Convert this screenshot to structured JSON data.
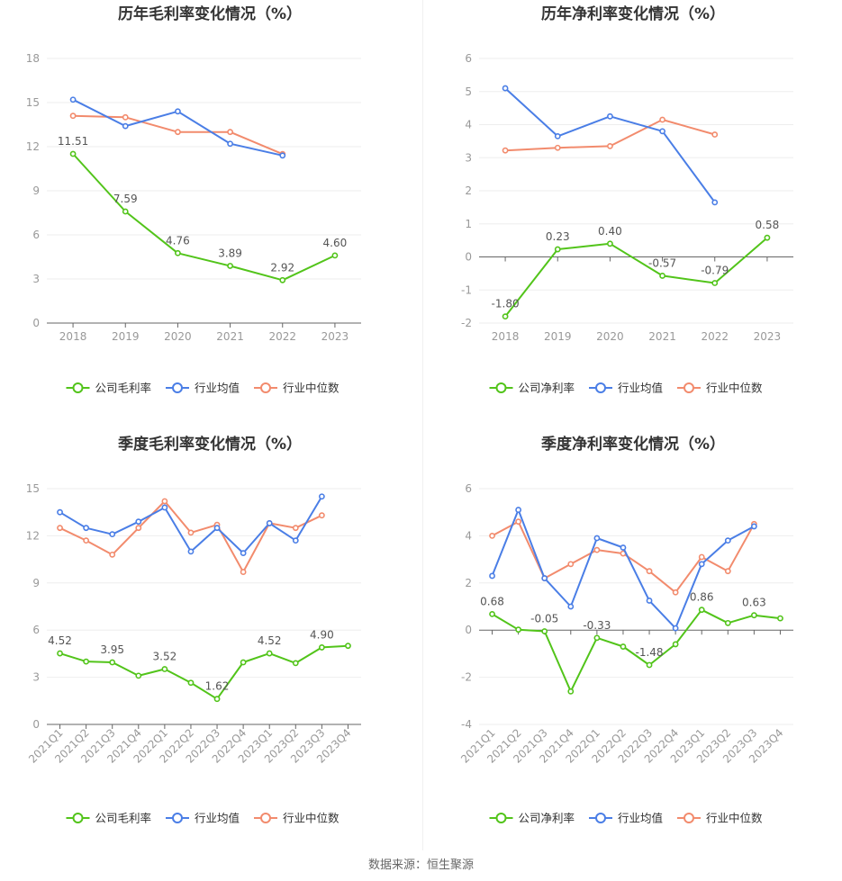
{
  "colors": {
    "company": "#52c41a",
    "industry_avg": "#4a7ee6",
    "industry_median": "#f28b6d",
    "grid": "#eeeeee",
    "axis": "#666666",
    "tick_text": "#999999"
  },
  "footer": {
    "source": "数据来源：恒生聚源"
  },
  "chart_data": [
    {
      "id": "annual-gross",
      "type": "line",
      "title": "历年毛利率变化情况（%）",
      "categories": [
        "2018",
        "2019",
        "2020",
        "2021",
        "2022",
        "2023"
      ],
      "ylim": [
        0,
        18
      ],
      "yticks": [
        0,
        3,
        6,
        9,
        12,
        15,
        18
      ],
      "grid": true,
      "legend_position": "bottom",
      "series": [
        {
          "name": "公司毛利率",
          "color": "#52c41a",
          "values": [
            11.51,
            7.59,
            4.76,
            3.89,
            2.92,
            4.6
          ],
          "labels": [
            "11.51",
            "7.59",
            "4.76",
            "3.89",
            "2.92",
            "4.60"
          ]
        },
        {
          "name": "行业均值",
          "color": "#4a7ee6",
          "values": [
            15.2,
            13.4,
            14.4,
            12.2,
            11.4,
            null
          ]
        },
        {
          "name": "行业中位数",
          "color": "#f28b6d",
          "values": [
            14.1,
            14.0,
            13.0,
            13.0,
            11.5,
            null
          ]
        }
      ]
    },
    {
      "id": "annual-net",
      "type": "line",
      "title": "历年净利率变化情况（%）",
      "categories": [
        "2018",
        "2019",
        "2020",
        "2021",
        "2022",
        "2023"
      ],
      "ylim": [
        -2,
        6
      ],
      "yticks": [
        -2,
        -1,
        0,
        1,
        2,
        3,
        4,
        5,
        6
      ],
      "grid": true,
      "legend_position": "bottom",
      "series": [
        {
          "name": "公司净利率",
          "color": "#52c41a",
          "values": [
            -1.8,
            0.23,
            0.4,
            -0.57,
            -0.79,
            0.58
          ],
          "labels": [
            "-1.80",
            "0.23",
            "0.40",
            "-0.57",
            "-0.79",
            "0.58"
          ]
        },
        {
          "name": "行业均值",
          "color": "#4a7ee6",
          "values": [
            5.1,
            3.65,
            4.25,
            3.8,
            1.65,
            null
          ]
        },
        {
          "name": "行业中位数",
          "color": "#f28b6d",
          "values": [
            3.22,
            3.3,
            3.35,
            4.15,
            3.7,
            null
          ]
        }
      ]
    },
    {
      "id": "quarterly-gross",
      "type": "line",
      "title": "季度毛利率变化情况（%）",
      "categories": [
        "2021Q1",
        "2021Q2",
        "2021Q3",
        "2021Q4",
        "2022Q1",
        "2022Q2",
        "2022Q3",
        "2022Q4",
        "2023Q1",
        "2023Q2",
        "2023Q3",
        "2023Q4"
      ],
      "ylim": [
        0,
        15
      ],
      "yticks": [
        0,
        3,
        6,
        9,
        12,
        15
      ],
      "grid": true,
      "legend_position": "bottom",
      "series": [
        {
          "name": "公司毛利率",
          "color": "#52c41a",
          "values": [
            4.52,
            4.0,
            3.95,
            3.1,
            3.52,
            2.65,
            1.62,
            3.95,
            4.52,
            3.9,
            4.9,
            5.0
          ],
          "labels": [
            "4.52",
            "",
            "3.95",
            "",
            "3.52",
            "",
            "1.62",
            "",
            "4.52",
            "",
            "4.90",
            ""
          ]
        },
        {
          "name": "行业均值",
          "color": "#4a7ee6",
          "values": [
            13.5,
            12.5,
            12.1,
            12.9,
            13.8,
            11.0,
            12.5,
            10.9,
            12.8,
            11.7,
            14.5,
            null
          ]
        },
        {
          "name": "行业中位数",
          "color": "#f28b6d",
          "values": [
            12.5,
            11.7,
            10.8,
            12.5,
            14.2,
            12.2,
            12.7,
            9.7,
            12.8,
            12.5,
            13.3,
            null
          ]
        }
      ]
    },
    {
      "id": "quarterly-net",
      "type": "line",
      "title": "季度净利率变化情况（%）",
      "categories": [
        "2021Q1",
        "2021Q2",
        "2021Q3",
        "2021Q4",
        "2022Q1",
        "2022Q2",
        "2022Q3",
        "2022Q4",
        "2023Q1",
        "2023Q2",
        "2023Q3",
        "2023Q4"
      ],
      "ylim": [
        -4,
        6
      ],
      "yticks": [
        -4,
        -2,
        0,
        2,
        4,
        6
      ],
      "grid": true,
      "legend_position": "bottom",
      "series": [
        {
          "name": "公司净利率",
          "color": "#52c41a",
          "values": [
            0.68,
            0.02,
            -0.05,
            -2.6,
            -0.33,
            -0.7,
            -1.48,
            -0.6,
            0.86,
            0.3,
            0.63,
            0.5
          ],
          "labels": [
            "0.68",
            "",
            "-0.05",
            "",
            "-0.33",
            "",
            "-1.48",
            "",
            "0.86",
            "",
            "0.63",
            ""
          ]
        },
        {
          "name": "行业均值",
          "color": "#4a7ee6",
          "values": [
            2.3,
            5.1,
            2.2,
            1.0,
            3.9,
            3.5,
            1.25,
            0.08,
            2.8,
            3.8,
            4.4,
            null
          ]
        },
        {
          "name": "行业中位数",
          "color": "#f28b6d",
          "values": [
            4.0,
            4.6,
            2.2,
            2.8,
            3.4,
            3.25,
            2.5,
            1.6,
            3.1,
            2.5,
            4.5,
            null
          ]
        }
      ]
    }
  ]
}
